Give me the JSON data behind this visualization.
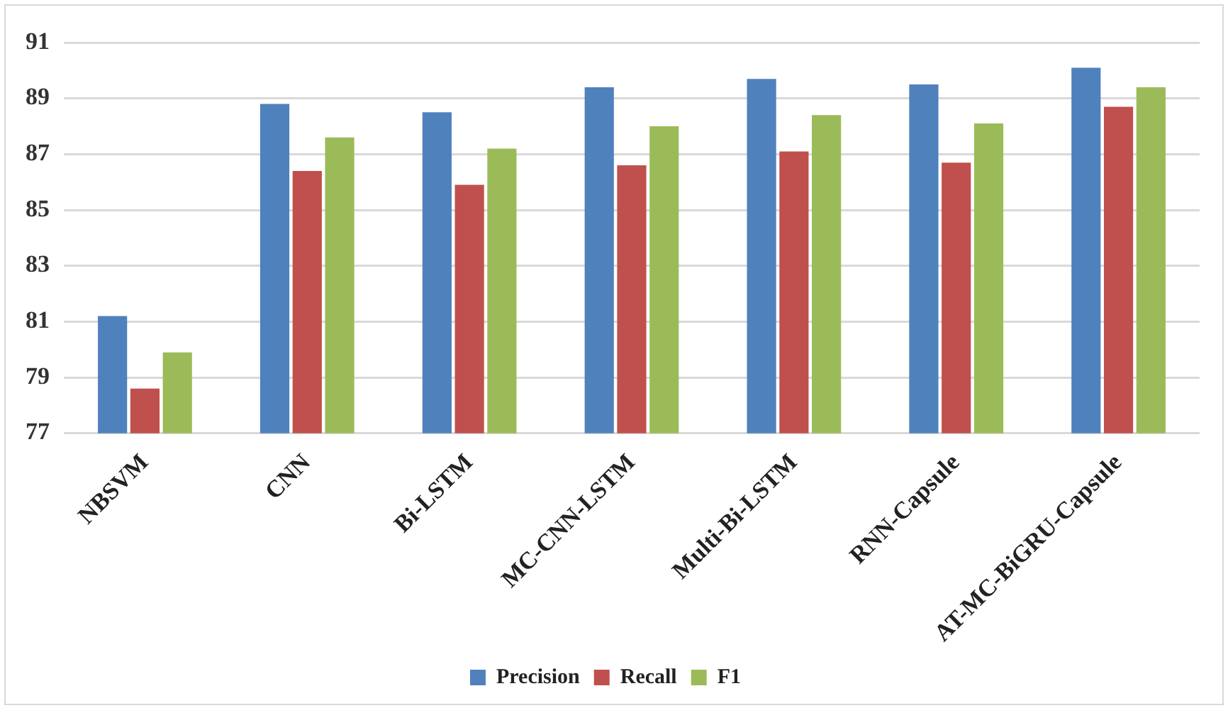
{
  "chart_data": {
    "type": "bar",
    "categories": [
      "NBSVM",
      "CNN",
      "Bi-LSTM",
      "MC-CNN-LSTM",
      "Multi-Bi-LSTM",
      "RNN-Capsule",
      "AT-MC-BiGRU-Capsule"
    ],
    "series": [
      {
        "name": "Precision",
        "color": "#4f81bd",
        "values": [
          81.2,
          88.8,
          88.5,
          89.4,
          89.7,
          89.5,
          90.1
        ]
      },
      {
        "name": "Recall",
        "color": "#c0504d",
        "values": [
          78.6,
          86.4,
          85.9,
          86.6,
          87.1,
          86.7,
          88.7
        ]
      },
      {
        "name": "F1",
        "color": "#9bbb59",
        "values": [
          79.9,
          87.6,
          87.2,
          88.0,
          88.4,
          88.1,
          89.4
        ]
      }
    ],
    "ylim": [
      77,
      91
    ],
    "yticks": [
      77,
      79,
      81,
      83,
      85,
      87,
      89,
      91
    ],
    "grid": "y",
    "legend": "bottom"
  }
}
